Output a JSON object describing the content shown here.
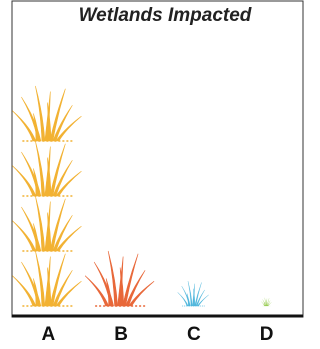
{
  "chart_data": {
    "type": "pictograph",
    "title": "Wetlands Impacted",
    "categories": [
      "A",
      "B",
      "C",
      "D"
    ],
    "values": [
      4,
      1,
      0.45,
      0.15
    ],
    "colors": [
      "#f2b233",
      "#e8683a",
      "#4fb6dc",
      "#8cc63f"
    ]
  }
}
